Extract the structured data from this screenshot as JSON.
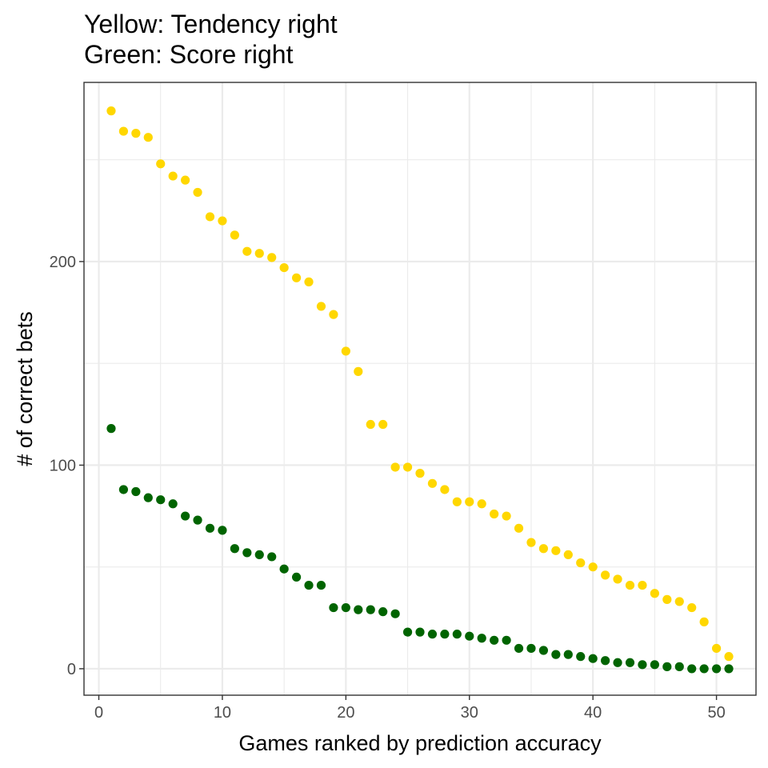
{
  "chart_data": {
    "type": "scatter",
    "title_lines": [
      "Yellow: Tendency right",
      "Green: Score right"
    ],
    "xlabel": "Games ranked by prediction accuracy",
    "ylabel": "# of correct bets",
    "xlim": [
      -1.2,
      53.2
    ],
    "ylim": [
      -13,
      288
    ],
    "x_ticks": [
      0,
      10,
      20,
      30,
      40,
      50
    ],
    "y_ticks": [
      0,
      100,
      200
    ],
    "grid": true,
    "colors": {
      "tendency": "#FFD700",
      "score": "#006400",
      "grid": "#ebebeb",
      "border": "#333333"
    },
    "series": [
      {
        "color_key": "tendency",
        "x": [
          1,
          2,
          3,
          4,
          5,
          6,
          7,
          8,
          9,
          10,
          11,
          12,
          13,
          14,
          15,
          16,
          17,
          18,
          19,
          20,
          21,
          22,
          23,
          24,
          25,
          26,
          27,
          28,
          29,
          30,
          31,
          32,
          33,
          34,
          35,
          36,
          37,
          38,
          39,
          40,
          41,
          42,
          43,
          44,
          45,
          46,
          47,
          48,
          49,
          50,
          51
        ],
        "y": [
          274,
          264,
          263,
          261,
          248,
          242,
          240,
          234,
          222,
          220,
          213,
          205,
          204,
          202,
          197,
          192,
          190,
          178,
          174,
          156,
          146,
          120,
          120,
          99,
          99,
          96,
          91,
          88,
          82,
          82,
          81,
          76,
          75,
          69,
          62,
          59,
          58,
          56,
          52,
          50,
          46,
          44,
          41,
          41,
          37,
          34,
          33,
          30,
          23,
          10,
          6
        ]
      },
      {
        "color_key": "score",
        "x": [
          1,
          2,
          3,
          4,
          5,
          6,
          7,
          8,
          9,
          10,
          11,
          12,
          13,
          14,
          15,
          16,
          17,
          18,
          19,
          20,
          21,
          22,
          23,
          24,
          25,
          26,
          27,
          28,
          29,
          30,
          31,
          32,
          33,
          34,
          35,
          36,
          37,
          38,
          39,
          40,
          41,
          42,
          43,
          44,
          45,
          46,
          47,
          48,
          49,
          50,
          51
        ],
        "y": [
          118,
          88,
          87,
          84,
          83,
          81,
          75,
          73,
          69,
          68,
          59,
          57,
          56,
          55,
          49,
          45,
          41,
          41,
          30,
          30,
          29,
          29,
          28,
          27,
          18,
          18,
          17,
          17,
          17,
          16,
          15,
          14,
          14,
          10,
          10,
          9,
          7,
          7,
          6,
          5,
          4,
          3,
          3,
          2,
          2,
          1,
          1,
          0,
          0,
          0,
          0
        ]
      }
    ]
  }
}
